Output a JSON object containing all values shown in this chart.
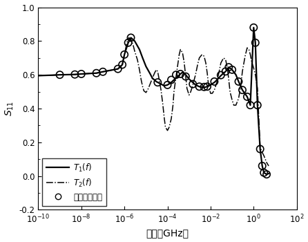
{
  "title": "",
  "xlabel": "频率（GHz）",
  "ylabel": "S_{11}",
  "xlim_log": [
    -10,
    2
  ],
  "ylim": [
    -0.2,
    1.0
  ],
  "yticks": [
    -0.2,
    0,
    0.2,
    0.4,
    0.6,
    0.8,
    1.0
  ],
  "legend_labels": [
    "T_1(f)",
    "T_2(f)",
    "离散频点响应"
  ],
  "background_color": "#ffffff",
  "T1_x": [
    1e-10,
    5e-10,
    1e-09,
    5e-09,
    1e-08,
    5e-08,
    1e-07,
    5e-07,
    8e-07,
    1e-06,
    1.5e-06,
    2e-06,
    3e-06,
    5e-06,
    7e-06,
    1e-05,
    1.5e-05,
    2e-05,
    3e-05,
    5e-05,
    7e-05,
    0.0001,
    0.00015,
    0.0002,
    0.0003,
    0.0004,
    0.0005,
    0.0007,
    0.001,
    0.0015,
    0.002,
    0.003,
    0.005,
    0.007,
    0.01,
    0.015,
    0.02,
    0.03,
    0.05,
    0.07,
    0.1,
    0.15,
    0.2,
    0.3,
    0.5,
    0.7,
    1.0,
    1.2,
    1.5,
    2.0,
    2.5,
    3.0,
    4.0,
    5.0
  ],
  "T1_y": [
    0.595,
    0.598,
    0.6,
    0.602,
    0.605,
    0.61,
    0.618,
    0.635,
    0.66,
    0.72,
    0.79,
    0.82,
    0.8,
    0.75,
    0.7,
    0.65,
    0.61,
    0.58,
    0.56,
    0.545,
    0.535,
    0.54,
    0.555,
    0.57,
    0.59,
    0.605,
    0.615,
    0.6,
    0.575,
    0.555,
    0.54,
    0.53,
    0.525,
    0.53,
    0.54,
    0.555,
    0.57,
    0.595,
    0.62,
    0.645,
    0.63,
    0.6,
    0.56,
    0.51,
    0.47,
    0.42,
    0.88,
    0.79,
    0.42,
    0.16,
    0.06,
    0.02,
    0.01,
    0.015
  ],
  "T2_x": [
    1e-10,
    5e-10,
    1e-09,
    5e-09,
    1e-08,
    5e-08,
    1e-07,
    5e-07,
    8e-07,
    1e-06,
    1.3e-06,
    1.6e-06,
    2e-06,
    2.5e-06,
    3e-06,
    4e-06,
    5e-06,
    6e-06,
    7e-06,
    8e-06,
    1e-05,
    1.2e-05,
    1.5e-05,
    2e-05,
    2.5e-05,
    3e-05,
    3.5e-05,
    4e-05,
    5e-05,
    6e-05,
    7e-05,
    8e-05,
    0.0001,
    0.00012,
    0.00015,
    0.00018,
    0.0002,
    0.00025,
    0.0003,
    0.00035,
    0.0004,
    0.0005,
    0.0006,
    0.0007,
    0.0008,
    0.001,
    0.0012,
    0.0015,
    0.002,
    0.0025,
    0.003,
    0.004,
    0.005,
    0.006,
    0.007,
    0.008,
    0.01,
    0.012,
    0.015,
    0.02,
    0.025,
    0.03,
    0.04,
    0.05,
    0.06,
    0.07,
    0.08,
    0.1,
    0.12,
    0.15,
    0.2,
    0.25,
    0.3,
    0.4,
    0.5,
    0.6,
    0.7,
    0.8,
    1.0,
    1.2,
    1.5,
    2.0,
    2.5,
    3.0,
    4.0,
    5.0
  ],
  "T2_y": [
    0.595,
    0.598,
    0.6,
    0.602,
    0.605,
    0.61,
    0.618,
    0.635,
    0.66,
    0.72,
    0.79,
    0.82,
    0.81,
    0.78,
    0.74,
    0.69,
    0.63,
    0.57,
    0.53,
    0.505,
    0.495,
    0.51,
    0.54,
    0.58,
    0.61,
    0.63,
    0.62,
    0.58,
    0.51,
    0.43,
    0.35,
    0.29,
    0.27,
    0.29,
    0.34,
    0.42,
    0.5,
    0.59,
    0.66,
    0.72,
    0.75,
    0.73,
    0.67,
    0.59,
    0.52,
    0.48,
    0.5,
    0.54,
    0.6,
    0.66,
    0.7,
    0.72,
    0.71,
    0.67,
    0.61,
    0.54,
    0.49,
    0.49,
    0.51,
    0.56,
    0.62,
    0.67,
    0.7,
    0.69,
    0.64,
    0.57,
    0.5,
    0.45,
    0.42,
    0.42,
    0.46,
    0.53,
    0.62,
    0.71,
    0.76,
    0.75,
    0.72,
    0.68,
    0.64,
    0.6,
    0.52,
    0.17,
    0.14,
    0.12,
    0.08,
    0.06
  ],
  "scatter_x": [
    1e-09,
    5e-09,
    1e-08,
    5e-08,
    1e-07,
    5e-07,
    8e-07,
    1e-06,
    1.5e-06,
    2e-06,
    3.5e-05,
    0.0001,
    0.00015,
    0.00025,
    0.0004,
    0.0007,
    0.0015,
    0.003,
    0.005,
    0.007,
    0.015,
    0.03,
    0.05,
    0.07,
    0.1,
    0.2,
    0.3,
    0.5,
    0.7,
    1.0,
    1.2,
    1.5,
    2.0,
    2.5,
    3.0,
    4.0
  ],
  "scatter_y": [
    0.6,
    0.602,
    0.605,
    0.61,
    0.618,
    0.635,
    0.66,
    0.72,
    0.79,
    0.82,
    0.555,
    0.54,
    0.57,
    0.6,
    0.605,
    0.59,
    0.545,
    0.53,
    0.528,
    0.53,
    0.56,
    0.598,
    0.62,
    0.645,
    0.63,
    0.56,
    0.51,
    0.47,
    0.42,
    0.88,
    0.79,
    0.42,
    0.16,
    0.06,
    0.02,
    0.01
  ]
}
